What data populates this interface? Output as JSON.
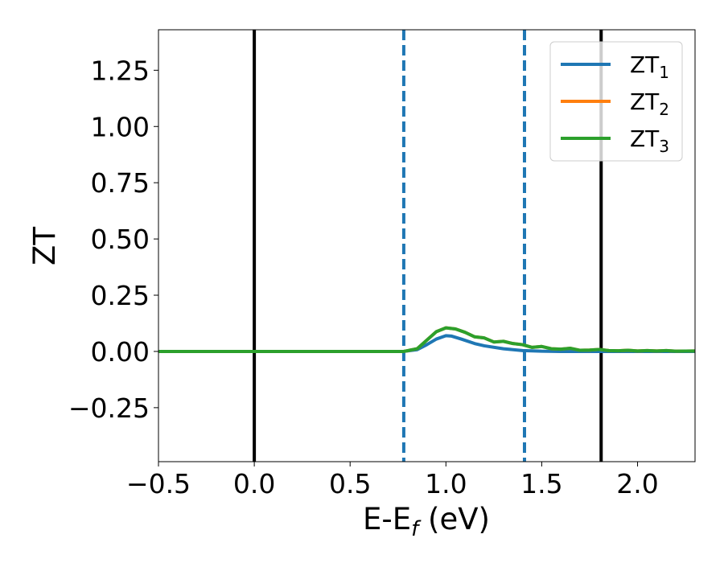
{
  "chart_data": {
    "type": "line",
    "title": "",
    "xlabel_main": "E-E",
    "xlabel_sub": "f",
    "xlabel_tail": " (eV)",
    "ylabel": "ZT",
    "xlim": [
      -0.5,
      2.3
    ],
    "ylim": [
      -0.49,
      1.43
    ],
    "grid": false,
    "legend_position": "top-right",
    "x_ticks": [
      -0.5,
      0.0,
      0.5,
      1.0,
      1.5,
      2.0
    ],
    "x_tick_labels": [
      "−0.5",
      "0.0",
      "0.5",
      "1.0",
      "1.5",
      "2.0"
    ],
    "y_ticks": [
      -0.25,
      0.0,
      0.25,
      0.5,
      0.75,
      1.0,
      1.25
    ],
    "y_tick_labels": [
      "−0.25",
      "0.00",
      "0.25",
      "0.50",
      "0.75",
      "1.00",
      "1.25"
    ],
    "vertical_lines": [
      {
        "x": 0.0,
        "color": "#000000",
        "style": "solid"
      },
      {
        "x": 0.78,
        "color": "#1f77b4",
        "style": "dashed"
      },
      {
        "x": 1.41,
        "color": "#1f77b4",
        "style": "dashed"
      },
      {
        "x": 1.81,
        "color": "#000000",
        "style": "solid"
      }
    ],
    "series": [
      {
        "name_main": "ZT",
        "name_sub": "1",
        "color": "#1f77b4",
        "x": [
          -0.5,
          0.78,
          0.85,
          0.9,
          0.95,
          1.0,
          1.03,
          1.08,
          1.15,
          1.2,
          1.3,
          1.4,
          1.5,
          1.6,
          1.8,
          2.0,
          2.3
        ],
        "y": [
          0.0,
          0.0,
          0.008,
          0.03,
          0.055,
          0.07,
          0.068,
          0.055,
          0.035,
          0.025,
          0.012,
          0.004,
          0.001,
          0.0,
          0.0,
          0.0,
          0.0
        ]
      },
      {
        "name_main": "ZT",
        "name_sub": "2",
        "color": "#ff7f0e",
        "x": [
          -0.5,
          0.78,
          0.85,
          0.9,
          0.95,
          1.0,
          1.05,
          1.1,
          1.15,
          1.2,
          1.25,
          1.3,
          1.35,
          1.4,
          1.45,
          1.5,
          1.55,
          1.6,
          1.65,
          1.7,
          1.75,
          1.8,
          1.85,
          1.9,
          1.95,
          2.0,
          2.05,
          2.1,
          2.15,
          2.2,
          2.3
        ],
        "y": [
          0.0,
          0.0,
          0.012,
          0.05,
          0.088,
          0.105,
          0.1,
          0.085,
          0.065,
          0.06,
          0.042,
          0.045,
          0.035,
          0.03,
          0.018,
          0.022,
          0.012,
          0.01,
          0.014,
          0.005,
          0.006,
          0.009,
          0.004,
          0.003,
          0.005,
          0.002,
          0.004,
          0.002,
          0.004,
          0.001,
          0.002
        ]
      },
      {
        "name_main": "ZT",
        "name_sub": "3",
        "color": "#2ca02c",
        "x": [
          -0.5,
          0.78,
          0.85,
          0.9,
          0.95,
          1.0,
          1.05,
          1.1,
          1.15,
          1.2,
          1.25,
          1.3,
          1.35,
          1.4,
          1.45,
          1.5,
          1.55,
          1.6,
          1.65,
          1.7,
          1.75,
          1.8,
          1.85,
          1.9,
          1.95,
          2.0,
          2.05,
          2.1,
          2.15,
          2.2,
          2.3
        ],
        "y": [
          0.0,
          0.0,
          0.012,
          0.05,
          0.088,
          0.105,
          0.1,
          0.085,
          0.065,
          0.06,
          0.042,
          0.045,
          0.035,
          0.03,
          0.018,
          0.022,
          0.012,
          0.01,
          0.014,
          0.005,
          0.006,
          0.009,
          0.004,
          0.003,
          0.005,
          0.002,
          0.004,
          0.002,
          0.004,
          0.001,
          0.002
        ]
      }
    ]
  }
}
